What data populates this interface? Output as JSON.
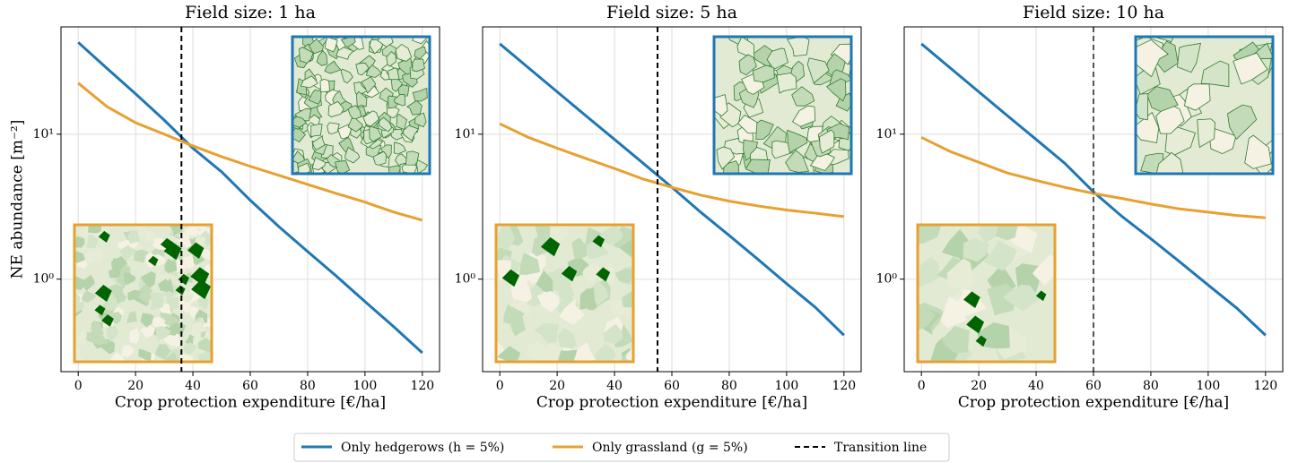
{
  "chart_data": [
    {
      "type": "line",
      "title": "Field size: 1 ha",
      "xlabel": "Crop protection expenditure [€/ha]",
      "ylabel": "NE abundance [m⁻²]",
      "x": [
        0,
        10,
        20,
        30,
        40,
        50,
        60,
        70,
        80,
        90,
        100,
        110,
        120
      ],
      "series": [
        {
          "name": "Only hedgerows (h = 5%)",
          "color": "#1f77b4",
          "values": [
            43,
            28.5,
            19,
            12.5,
            8.0,
            5.5,
            3.5,
            2.3,
            1.55,
            1.05,
            0.7,
            0.47,
            0.31
          ]
        },
        {
          "name": "Only grassland (g = 5%)",
          "color": "#e8a030",
          "values": [
            22.5,
            15.5,
            12,
            10,
            8.3,
            7,
            6,
            5.2,
            4.5,
            3.9,
            3.4,
            2.9,
            2.55
          ]
        }
      ],
      "vline": {
        "name": "Transition line",
        "x": 36,
        "color": "#000000"
      },
      "xlim": [
        -6,
        126
      ],
      "xticks": [
        0,
        20,
        40,
        60,
        80,
        100,
        120
      ],
      "ylim": [
        0.23,
        55
      ],
      "yticks": [
        {
          "value": 1,
          "label": "10⁰"
        },
        {
          "value": 10,
          "label": "10¹"
        }
      ],
      "log_y": true,
      "grid": true
    },
    {
      "type": "line",
      "title": "Field size: 5 ha",
      "xlabel": "Crop protection expenditure [€/ha]",
      "x": [
        0,
        10,
        20,
        30,
        40,
        50,
        60,
        70,
        80,
        90,
        100,
        110,
        120
      ],
      "series": [
        {
          "name": "Only hedgerows (h = 5%)",
          "color": "#1f77b4",
          "values": [
            42,
            28.7,
            19.6,
            13.4,
            9.2,
            6.3,
            4.3,
            2.9,
            2.0,
            1.37,
            0.93,
            0.64,
            0.41
          ]
        },
        {
          "name": "Only grassland (g = 5%)",
          "color": "#e8a030",
          "values": [
            11.8,
            9.5,
            8,
            6.8,
            5.8,
            4.9,
            4.3,
            3.8,
            3.45,
            3.2,
            3.0,
            2.85,
            2.7
          ]
        }
      ],
      "vline": {
        "name": "Transition line",
        "x": 55,
        "color": "#000000"
      },
      "xlim": [
        -6,
        126
      ],
      "xticks": [
        0,
        20,
        40,
        60,
        80,
        100,
        120
      ],
      "ylim": [
        0.23,
        55
      ],
      "yticks": [
        {
          "value": 1,
          "label": "10⁰"
        },
        {
          "value": 10,
          "label": "10¹"
        }
      ],
      "log_y": true,
      "grid": true
    },
    {
      "type": "line",
      "title": "Field size: 10 ha",
      "xlabel": "Crop protection expenditure [€/ha]",
      "x": [
        0,
        10,
        20,
        30,
        40,
        50,
        60,
        70,
        80,
        90,
        100,
        110,
        120
      ],
      "series": [
        {
          "name": "Only hedgerows (h = 5%)",
          "color": "#1f77b4",
          "values": [
            42,
            28.7,
            19.6,
            13.4,
            9.2,
            6.3,
            4.0,
            2.7,
            1.9,
            1.32,
            0.91,
            0.63,
            0.41
          ]
        },
        {
          "name": "Only grassland (g = 5%)",
          "color": "#e8a030",
          "values": [
            9.5,
            7.6,
            6.4,
            5.4,
            4.8,
            4.3,
            3.9,
            3.6,
            3.3,
            3.05,
            2.9,
            2.75,
            2.65
          ]
        }
      ],
      "vline": {
        "name": "Transition line",
        "x": 60,
        "color": "#555555"
      },
      "xlim": [
        -6,
        126
      ],
      "xticks": [
        0,
        20,
        40,
        60,
        80,
        100,
        120
      ],
      "ylim": [
        0.23,
        55
      ],
      "yticks": [
        {
          "value": 1,
          "label": "10⁰"
        },
        {
          "value": 10,
          "label": "10¹"
        }
      ],
      "log_y": true,
      "grid": true
    }
  ]
}
